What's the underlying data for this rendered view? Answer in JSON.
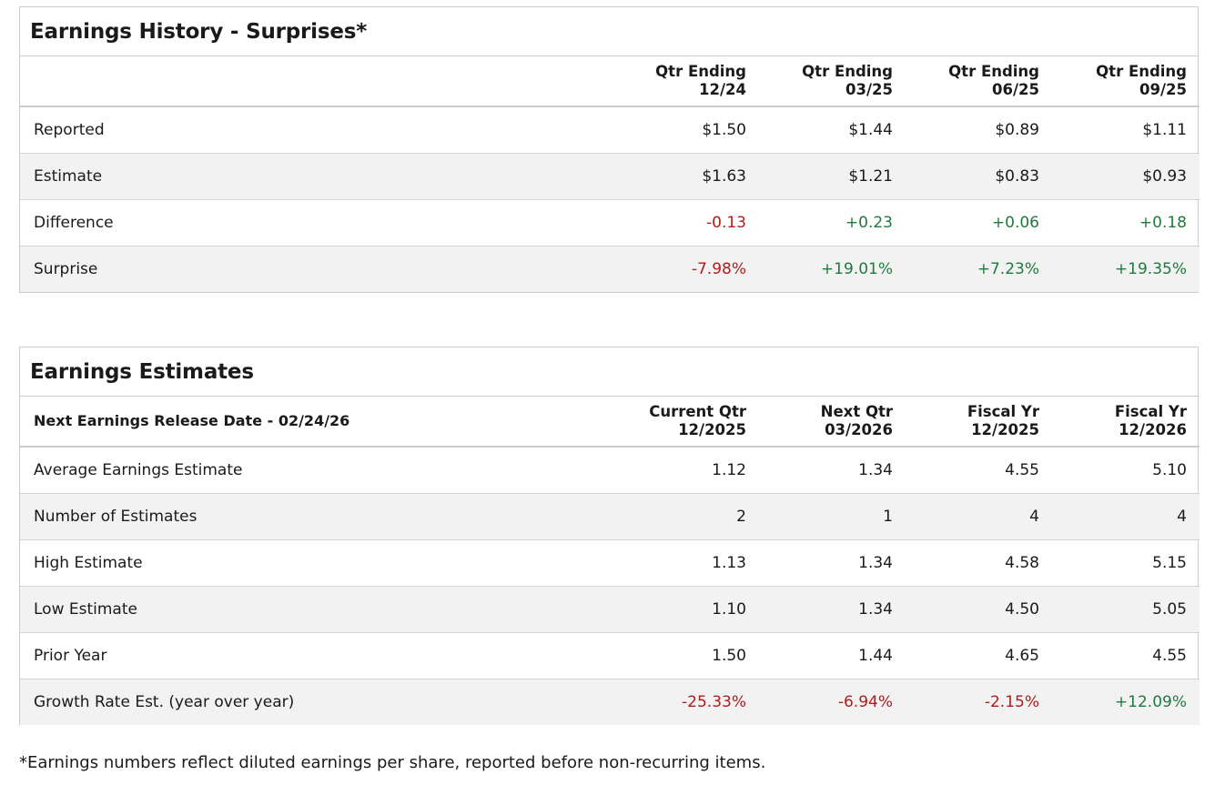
{
  "history": {
    "title": "Earnings History - Surprises*",
    "columns": [
      {
        "line1": "Qtr Ending",
        "line2": "12/24"
      },
      {
        "line1": "Qtr Ending",
        "line2": "03/25"
      },
      {
        "line1": "Qtr Ending",
        "line2": "06/25"
      },
      {
        "line1": "Qtr Ending",
        "line2": "09/25"
      }
    ],
    "rows": [
      {
        "label": "Reported",
        "values": [
          "$1.50",
          "$1.44",
          "$0.89",
          "$1.11"
        ]
      },
      {
        "label": "Estimate",
        "values": [
          "$1.63",
          "$1.21",
          "$0.83",
          "$0.93"
        ]
      },
      {
        "label": "Difference",
        "values": [
          "-0.13",
          "+0.23",
          "+0.06",
          "+0.18"
        ]
      },
      {
        "label": "Surprise",
        "values": [
          "-7.98%",
          "+19.01%",
          "+7.23%",
          "+19.35%"
        ]
      }
    ]
  },
  "estimates": {
    "title": "Earnings Estimates",
    "release_label": "Next Earnings Release Date - 02/24/26",
    "columns": [
      {
        "line1": "Current Qtr",
        "line2": "12/2025"
      },
      {
        "line1": "Next Qtr",
        "line2": "03/2026"
      },
      {
        "line1": "Fiscal Yr",
        "line2": "12/2025"
      },
      {
        "line1": "Fiscal Yr",
        "line2": "12/2026"
      }
    ],
    "rows": [
      {
        "label": "Average Earnings Estimate",
        "values": [
          "1.12",
          "1.34",
          "4.55",
          "5.10"
        ]
      },
      {
        "label": "Number of Estimates",
        "values": [
          "2",
          "1",
          "4",
          "4"
        ]
      },
      {
        "label": "High Estimate",
        "values": [
          "1.13",
          "1.34",
          "4.58",
          "5.15"
        ]
      },
      {
        "label": "Low Estimate",
        "values": [
          "1.10",
          "1.34",
          "4.50",
          "5.05"
        ]
      },
      {
        "label": "Prior Year",
        "values": [
          "1.50",
          "1.44",
          "4.65",
          "4.55"
        ]
      },
      {
        "label": "Growth Rate Est. (year over year)",
        "values": [
          "-25.33%",
          "-6.94%",
          "-2.15%",
          "+12.09%"
        ]
      }
    ]
  },
  "footnote": "*Earnings numbers reflect diluted earnings per share, reported before non-recurring items.",
  "colors": {
    "negative": "#b01c1c",
    "positive": "#1f7a3d",
    "alt_row": "#f2f2f2",
    "border": "#cccccc"
  }
}
